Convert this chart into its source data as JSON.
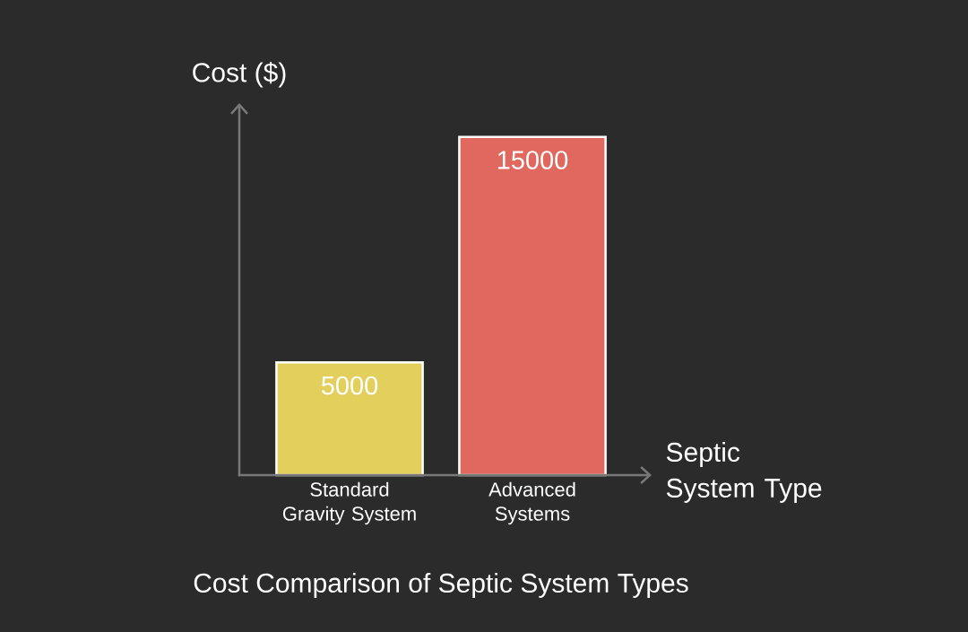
{
  "chart_data": {
    "type": "bar",
    "title": "Cost Comparison of Septic System Types",
    "xlabel": "Septic System Type",
    "ylabel": "Cost ($)",
    "categories": [
      "Standard Gravity System",
      "Advanced Systems"
    ],
    "values": [
      5000,
      15000
    ],
    "colors": [
      "#e2cf5c",
      "#e0685f"
    ],
    "data_labels": true
  }
}
